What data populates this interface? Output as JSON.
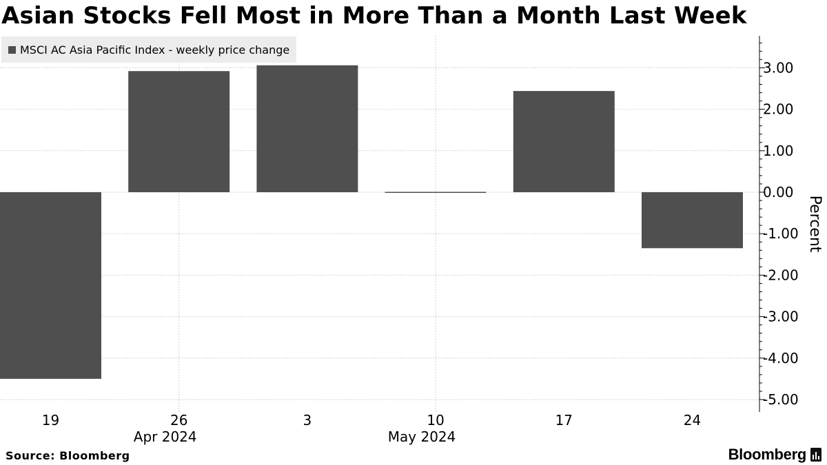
{
  "title": "Asian Stocks Fell Most in More Than a Month Last Week",
  "source": "Source: Bloomberg",
  "brand": "Bloomberg",
  "colors": {
    "bar": "#4f4f4f",
    "grid": "#cfcfcf",
    "axis": "#000000",
    "legend_bg": "#ececec"
  },
  "chart_data": {
    "type": "bar",
    "legend": "MSCI AC Asia Pacific Index - weekly price change",
    "categories": [
      "19",
      "26",
      "3",
      "10",
      "17",
      "24"
    ],
    "month_labels": [
      {
        "label": "Apr 2024",
        "under_category": "26"
      },
      {
        "label": "May 2024",
        "under_category": "10"
      }
    ],
    "series": [
      {
        "name": "MSCI AC Asia Pacific Index - weekly price change",
        "values": [
          -4.5,
          2.92,
          3.06,
          -0.02,
          2.44,
          -1.35
        ]
      }
    ],
    "ylabel": "Percent",
    "ylim": [
      -5,
      3.7
    ],
    "yticks": [
      "3.00",
      "2.00",
      "1.00",
      "0.00",
      "-1.00",
      "-2.00",
      "-3.00",
      "-4.00",
      "-5.00"
    ],
    "ytick_values": [
      3,
      2,
      1,
      0,
      -1,
      -2,
      -3,
      -4,
      -5
    ],
    "y_axis_side": "right",
    "grid": true
  }
}
